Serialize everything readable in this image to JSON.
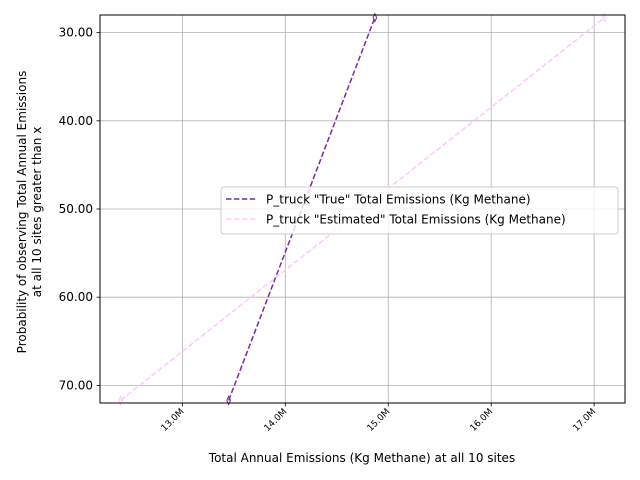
{
  "chart_data": {
    "type": "line",
    "xlabel": "Total Annual Emissions (Kg Methane) at all 10 sites",
    "ylabel_lines": [
      "Probability of observing Total Annual Emissions",
      "at all 10 sites greater than x"
    ],
    "xlim": [
      12.2,
      17.3
    ],
    "ylim": [
      28.0,
      72.0
    ],
    "y_inverted": true,
    "grid": true,
    "legend_position": "center-right",
    "x_ticks": [
      {
        "value": 13.0,
        "label": "13.0M"
      },
      {
        "value": 14.0,
        "label": "14.0M"
      },
      {
        "value": 15.0,
        "label": "15.0M"
      },
      {
        "value": 16.0,
        "label": "16.0M"
      },
      {
        "value": 17.0,
        "label": "17.0M"
      }
    ],
    "y_ticks": [
      {
        "value": 30.0,
        "label": "30.00"
      },
      {
        "value": 40.0,
        "label": "40.00"
      },
      {
        "value": 50.0,
        "label": "50.00"
      },
      {
        "value": 60.0,
        "label": "60.00"
      },
      {
        "value": 70.0,
        "label": "70.00"
      }
    ],
    "series": [
      {
        "name": "P_truck \"True\" Total Emissions (Kg Methane)",
        "color": "#7b2a9e",
        "marker": "thin_diamond",
        "linestyle": "dashed",
        "points": [
          [
            13.45,
            71.7
          ],
          [
            14.87,
            28.3
          ]
        ]
      },
      {
        "name": "P_truck \"Estimated\" Total Emissions (Kg Methane)",
        "color": "#ffc8ff",
        "marker": "thin_diamond",
        "linestyle": "dashed",
        "points": [
          [
            12.4,
            71.7
          ],
          [
            17.1,
            28.3
          ]
        ]
      }
    ]
  }
}
